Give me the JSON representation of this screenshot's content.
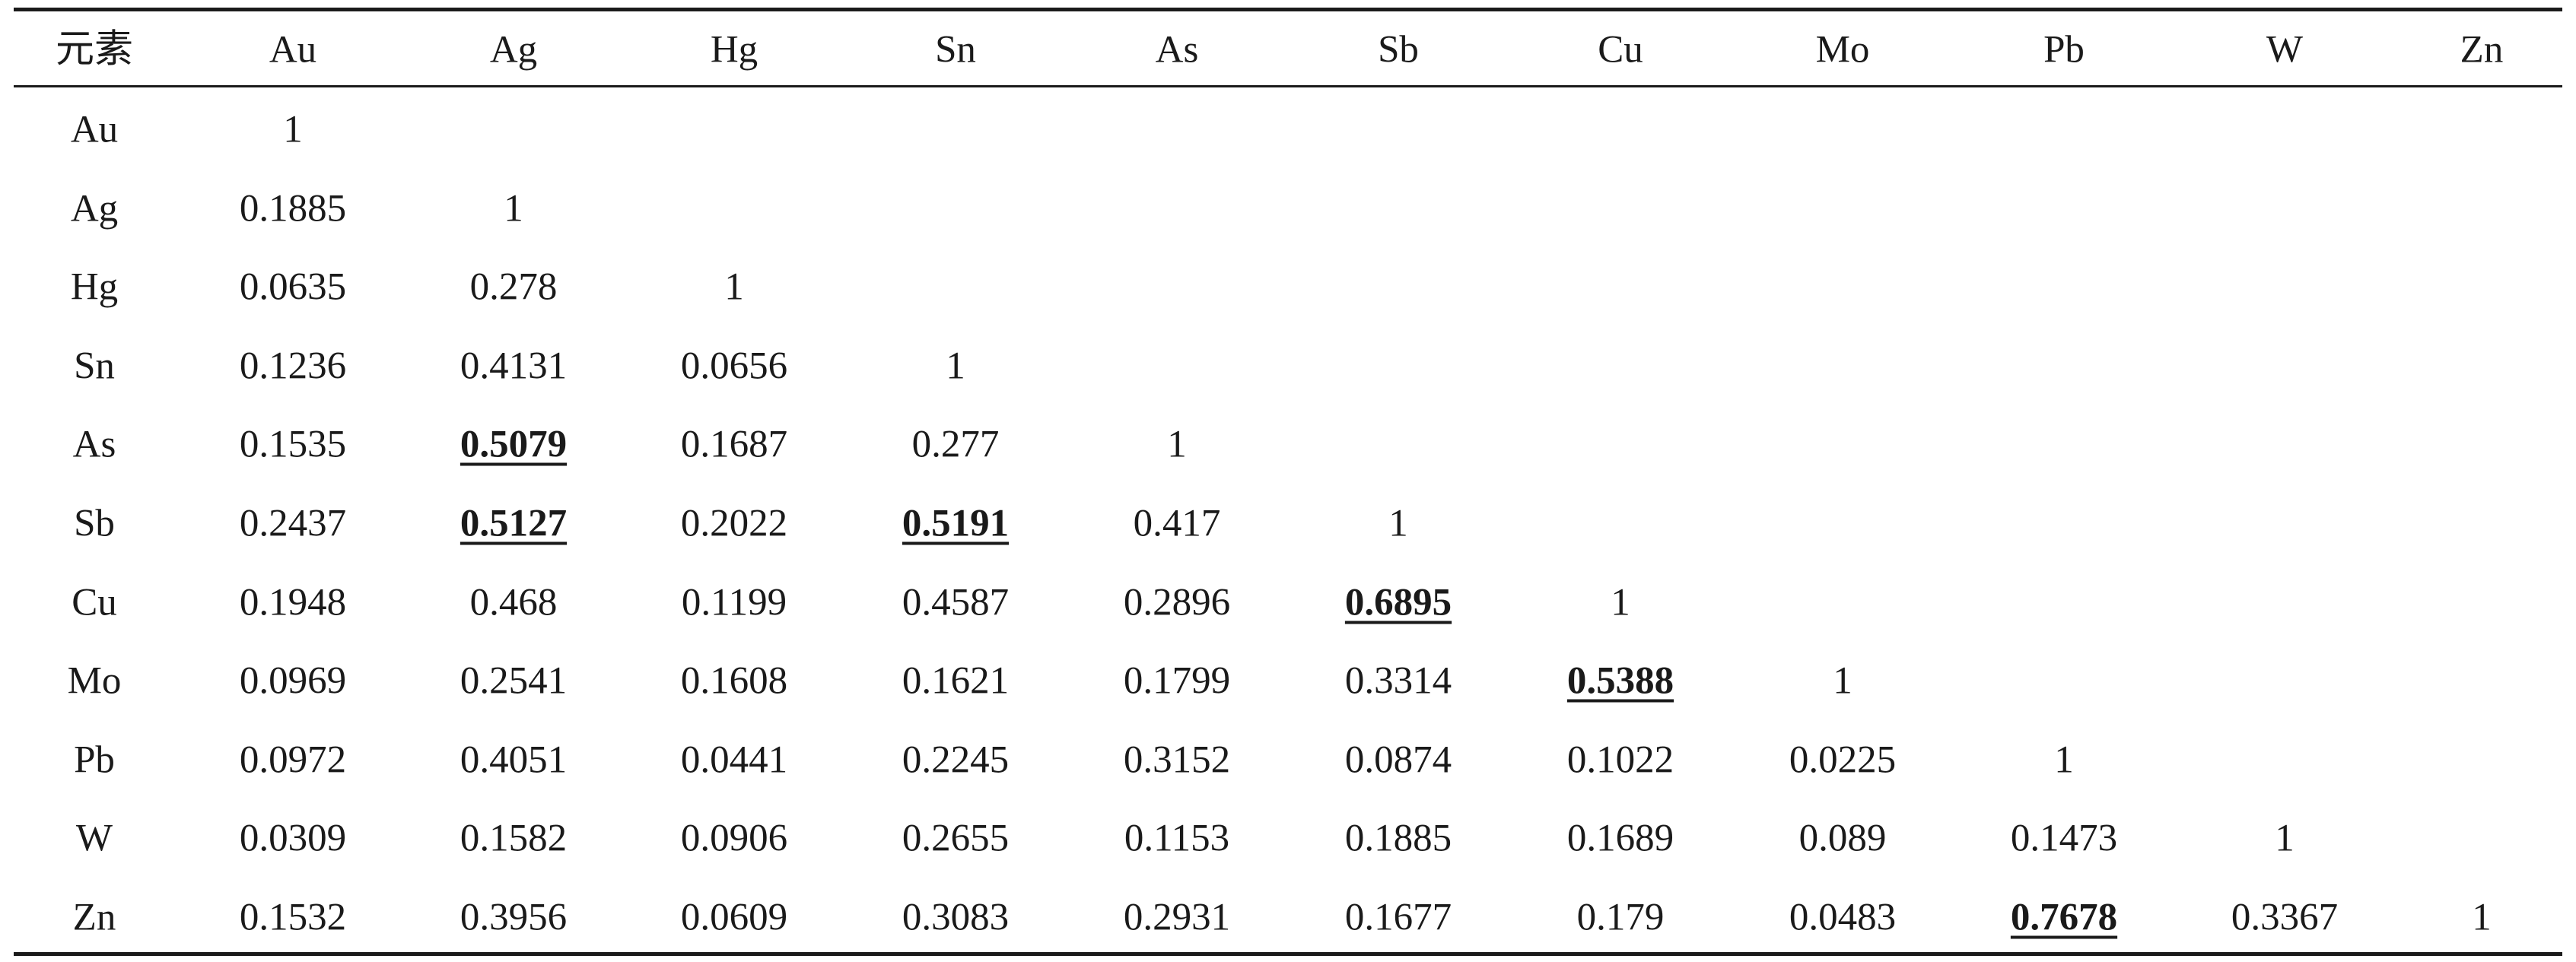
{
  "table": {
    "corner": "元素",
    "columns": [
      "Au",
      "Ag",
      "Hg",
      "Sn",
      "As",
      "Sb",
      "Cu",
      "Mo",
      "Pb",
      "W",
      "Zn"
    ],
    "rows": [
      {
        "label": "Au",
        "values": [
          "1"
        ]
      },
      {
        "label": "Ag",
        "values": [
          "0.1885",
          "1"
        ]
      },
      {
        "label": "Hg",
        "values": [
          "0.0635",
          "0.278",
          "1"
        ]
      },
      {
        "label": "Sn",
        "values": [
          "0.1236",
          "0.4131",
          "0.0656",
          "1"
        ]
      },
      {
        "label": "As",
        "values": [
          "0.1535",
          "0.5079",
          "0.1687",
          "0.277",
          "1"
        ]
      },
      {
        "label": "Sb",
        "values": [
          "0.2437",
          "0.5127",
          "0.2022",
          "0.5191",
          "0.417",
          "1"
        ]
      },
      {
        "label": "Cu",
        "values": [
          "0.1948",
          "0.468",
          "0.1199",
          "0.4587",
          "0.2896",
          "0.6895",
          "1"
        ]
      },
      {
        "label": "Mo",
        "values": [
          "0.0969",
          "0.2541",
          "0.1608",
          "0.1621",
          "0.1799",
          "0.3314",
          "0.5388",
          "1"
        ]
      },
      {
        "label": "Pb",
        "values": [
          "0.0972",
          "0.4051",
          "0.0441",
          "0.2245",
          "0.3152",
          "0.0874",
          "0.1022",
          "0.0225",
          "1"
        ]
      },
      {
        "label": "W",
        "values": [
          "0.0309",
          "0.1582",
          "0.0906",
          "0.2655",
          "0.1153",
          "0.1885",
          "0.1689",
          "0.089",
          "0.1473",
          "1"
        ]
      },
      {
        "label": "Zn",
        "values": [
          "0.1532",
          "0.3956",
          "0.0609",
          "0.3083",
          "0.2931",
          "0.1677",
          "0.179",
          "0.0483",
          "0.7678",
          "0.3367",
          "1"
        ]
      }
    ],
    "highlighted": [
      [
        "As",
        "Ag"
      ],
      [
        "Sb",
        "Ag"
      ],
      [
        "Sb",
        "Sn"
      ],
      [
        "Cu",
        "Sb"
      ],
      [
        "Mo",
        "Cu"
      ],
      [
        "Zn",
        "Pb"
      ]
    ]
  }
}
